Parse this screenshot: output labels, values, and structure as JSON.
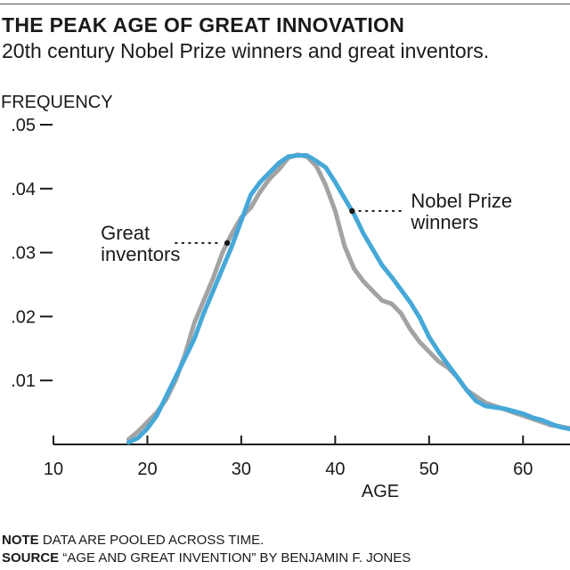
{
  "header": {
    "title": "THE PEAK AGE OF GREAT INNOVATION",
    "subtitle": "20th century Nobel Prize winners and great inventors."
  },
  "footer": {
    "note_label": "NOTE",
    "note_text": " DATA ARE POOLED ACROSS TIME.",
    "source_label": "SOURCE",
    "source_text": " “AGE AND GREAT INVENTION” BY BENJAMIN F. JONES"
  },
  "colors": {
    "nobel": "#45a8d8",
    "inventors": "#a3a3a3",
    "axis": "#1a1a1a"
  },
  "chart_data": {
    "type": "line",
    "title": "THE PEAK AGE OF GREAT INNOVATION",
    "subtitle": "20th century Nobel Prize winners and great inventors.",
    "xlabel": "AGE",
    "ylabel": "FREQUENCY",
    "xlim": [
      10,
      65
    ],
    "ylim": [
      0,
      0.05
    ],
    "grid": false,
    "x_ticks": [
      10,
      20,
      30,
      40,
      50,
      60
    ],
    "x_tick_labels": [
      "10",
      "20",
      "30",
      "40",
      "50",
      "60"
    ],
    "y_ticks": [
      0.01,
      0.02,
      0.03,
      0.04,
      0.05
    ],
    "y_tick_labels": [
      ".01",
      ".02",
      ".03",
      ".04",
      ".05"
    ],
    "series": [
      {
        "name": "Great inventors",
        "label_lines": [
          "Great",
          "inventors"
        ],
        "label_side": "left",
        "annotation_x": 28.5,
        "x": [
          18,
          19,
          20,
          21,
          22,
          23,
          24,
          25,
          26,
          27,
          28,
          29,
          30,
          31,
          32,
          33,
          34,
          35,
          36,
          37,
          38,
          39,
          40,
          41,
          42,
          43,
          44,
          45,
          46,
          47,
          48,
          49,
          50,
          51,
          52,
          53,
          54,
          55,
          56,
          57,
          58,
          59,
          60,
          61,
          62,
          63,
          64,
          65
        ],
        "values": [
          0.0008,
          0.002,
          0.0035,
          0.005,
          0.007,
          0.01,
          0.014,
          0.019,
          0.0225,
          0.026,
          0.03,
          0.033,
          0.0355,
          0.037,
          0.0395,
          0.0415,
          0.043,
          0.0448,
          0.0453,
          0.045,
          0.0435,
          0.0405,
          0.0365,
          0.031,
          0.0275,
          0.0255,
          0.024,
          0.0225,
          0.022,
          0.0205,
          0.018,
          0.016,
          0.0145,
          0.013,
          0.012,
          0.0105,
          0.0085,
          0.0075,
          0.0065,
          0.006,
          0.0055,
          0.005,
          0.0045,
          0.004,
          0.0035,
          0.003,
          0.0028,
          0.0025
        ]
      },
      {
        "name": "Nobel Prize winners",
        "label_lines": [
          "Nobel Prize",
          "winners"
        ],
        "label_side": "right",
        "annotation_x": 41.8,
        "x": [
          18,
          19,
          20,
          21,
          22,
          23,
          24,
          25,
          26,
          27,
          28,
          29,
          30,
          31,
          32,
          33,
          34,
          35,
          36,
          37,
          38,
          39,
          40,
          41,
          42,
          43,
          44,
          45,
          46,
          47,
          48,
          49,
          50,
          51,
          52,
          53,
          54,
          55,
          56,
          57,
          58,
          59,
          60,
          61,
          62,
          63,
          64,
          65
        ],
        "values": [
          0.0003,
          0.001,
          0.0025,
          0.0045,
          0.0075,
          0.0105,
          0.0135,
          0.0165,
          0.0205,
          0.024,
          0.0275,
          0.031,
          0.035,
          0.039,
          0.041,
          0.0425,
          0.044,
          0.045,
          0.0452,
          0.0452,
          0.0443,
          0.0433,
          0.041,
          0.0385,
          0.036,
          0.033,
          0.0305,
          0.028,
          0.0262,
          0.0242,
          0.0222,
          0.0198,
          0.0168,
          0.0145,
          0.0125,
          0.0105,
          0.0085,
          0.0068,
          0.006,
          0.0058,
          0.0056,
          0.0052,
          0.0048,
          0.0042,
          0.0038,
          0.0032,
          0.0027,
          0.0024
        ]
      }
    ]
  }
}
